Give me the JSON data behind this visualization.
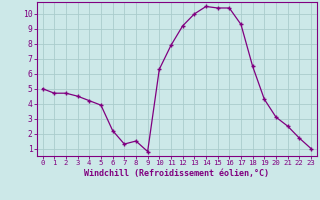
{
  "x": [
    0,
    1,
    2,
    3,
    4,
    5,
    6,
    7,
    8,
    9,
    10,
    11,
    12,
    13,
    14,
    15,
    16,
    17,
    18,
    19,
    20,
    21,
    22,
    23
  ],
  "y": [
    5.0,
    4.7,
    4.7,
    4.5,
    4.2,
    3.9,
    2.2,
    1.3,
    1.5,
    0.8,
    6.3,
    7.9,
    9.2,
    10.0,
    10.5,
    10.4,
    10.4,
    9.3,
    6.5,
    4.3,
    3.1,
    2.5,
    1.7,
    1.0
  ],
  "line_color": "#800080",
  "marker": "+",
  "marker_size": 3,
  "marker_linewidth": 1.0,
  "xlabel": "Windchill (Refroidissement éolien,°C)",
  "xlim": [
    -0.5,
    23.5
  ],
  "ylim": [
    0.5,
    10.8
  ],
  "yticks": [
    1,
    2,
    3,
    4,
    5,
    6,
    7,
    8,
    9,
    10
  ],
  "xticks": [
    0,
    1,
    2,
    3,
    4,
    5,
    6,
    7,
    8,
    9,
    10,
    11,
    12,
    13,
    14,
    15,
    16,
    17,
    18,
    19,
    20,
    21,
    22,
    23
  ],
  "background_color": "#cce8e8",
  "grid_color": "#aacccc",
  "spine_color": "#800080",
  "tick_color": "#800080",
  "label_color": "#800080"
}
